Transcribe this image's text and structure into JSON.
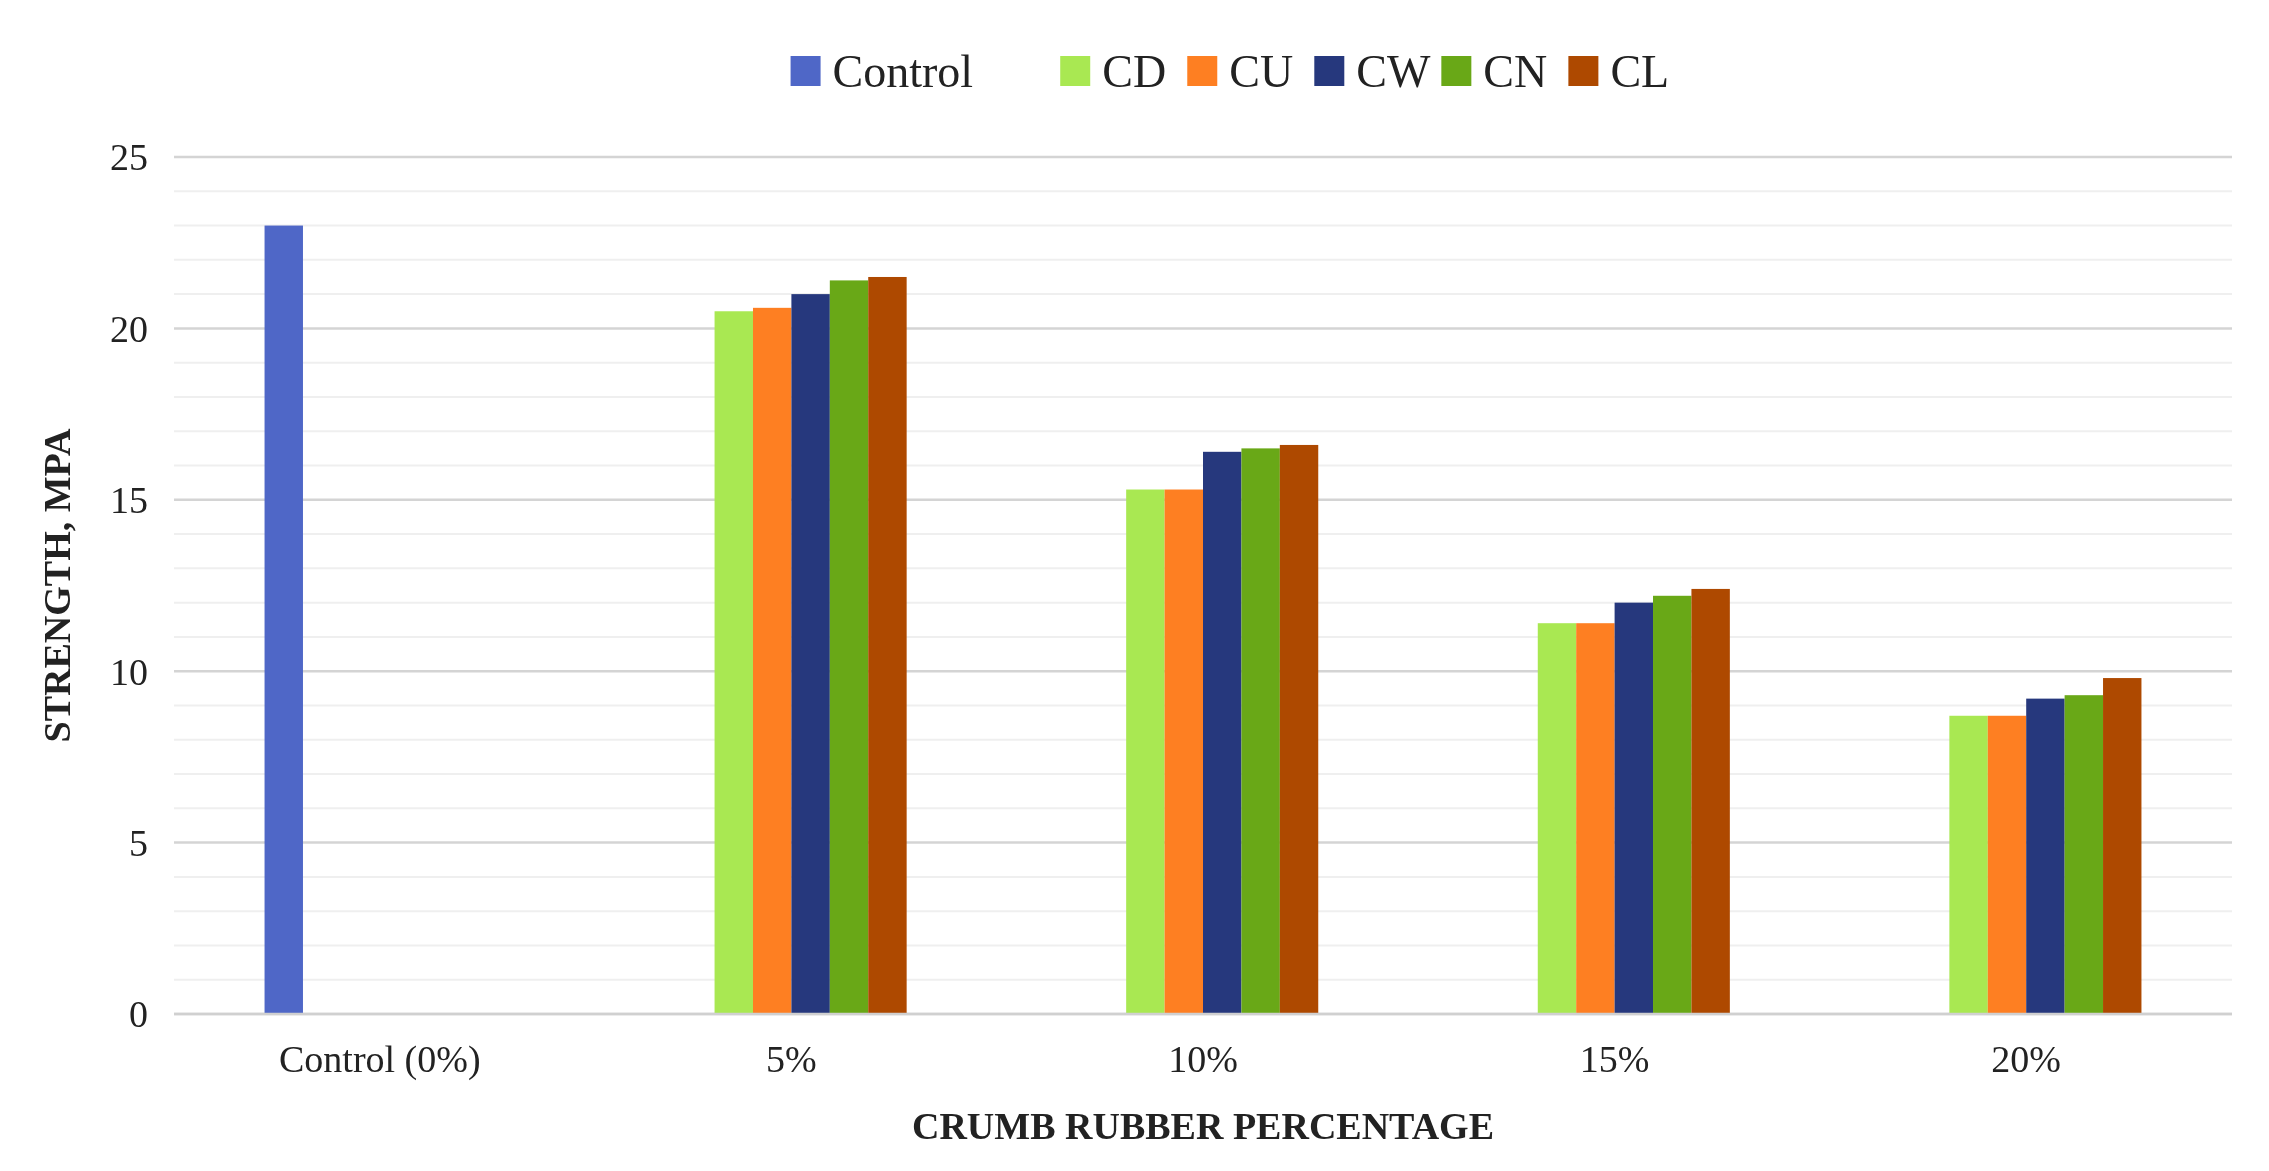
{
  "chart_data": {
    "type": "bar",
    "xlabel": "CRUMB RUBBER PERCENTAGE",
    "ylabel": "STRENGTH, MPA",
    "categories": [
      "Control (0%)",
      "5%",
      "10%",
      "15%",
      "20%"
    ],
    "series": [
      {
        "name": "Control",
        "color": "#4f67c7",
        "values": [
          23,
          null,
          null,
          null,
          null
        ]
      },
      {
        "name": "CD",
        "color": "#a9e852",
        "values": [
          null,
          20.5,
          15.3,
          11.4,
          8.7
        ]
      },
      {
        "name": "CU",
        "color": "#fe7f22",
        "values": [
          null,
          20.6,
          15.3,
          11.4,
          8.7
        ]
      },
      {
        "name": "CW",
        "color": "#26387d",
        "values": [
          null,
          21.0,
          16.4,
          12.0,
          9.2
        ]
      },
      {
        "name": "CN",
        "color": "#69a817",
        "values": [
          null,
          21.4,
          16.5,
          12.2,
          9.3
        ]
      },
      {
        "name": "CL",
        "color": "#ae4900",
        "values": [
          null,
          21.5,
          16.6,
          12.4,
          9.8
        ]
      }
    ],
    "ylim": [
      0,
      25
    ],
    "yticks": [
      0,
      {
        "value": 1,
        "label": null
      },
      {
        "value": 2,
        "label": null
      },
      {
        "value": 3,
        "label": null
      },
      {
        "value": 4,
        "label": null
      },
      5,
      {
        "value": 6,
        "label": null
      },
      {
        "value": 7,
        "label": null
      },
      {
        "value": 8,
        "label": null
      },
      {
        "value": 9,
        "label": null
      },
      10,
      {
        "value": 11,
        "label": null
      },
      {
        "value": 12,
        "label": null
      },
      {
        "value": 13,
        "label": null
      },
      {
        "value": 14,
        "label": null
      },
      15,
      {
        "value": 16,
        "label": null
      },
      {
        "value": 17,
        "label": null
      },
      {
        "value": 18,
        "label": null
      },
      {
        "value": 19,
        "label": null
      },
      20,
      {
        "value": 21,
        "label": null
      },
      {
        "value": 22,
        "label": null
      },
      {
        "value": 23,
        "label": null
      },
      {
        "value": 24,
        "label": null
      },
      25
    ],
    "grid": "y",
    "legend": "top"
  }
}
